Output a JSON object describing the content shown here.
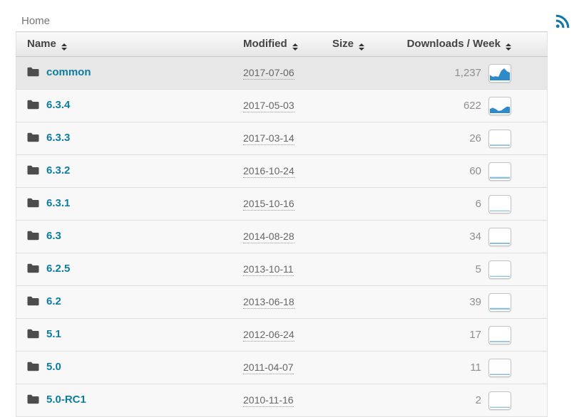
{
  "breadcrumb": {
    "home_label": "Home"
  },
  "icons": {
    "rss": "rss-feed-icon",
    "folder": "folder-icon",
    "sort": "sort-toggle-icon",
    "sparkline": "download-stats-sparkline-icon"
  },
  "colors": {
    "link": "#0e7ca0",
    "rss": "#1178a5",
    "spark_fill": "#2e8ac9",
    "spark_flat": "#8bbfde",
    "header_text": "#444444",
    "first_row_bg": "#e7e7e7"
  },
  "table": {
    "columns": [
      {
        "label": "Name",
        "sortable": true
      },
      {
        "label": "Modified",
        "sortable": true
      },
      {
        "label": "Size",
        "sortable": true
      },
      {
        "label": "Downloads / Week",
        "sortable": true
      }
    ],
    "rows": [
      {
        "name": "common",
        "type": "folder",
        "modified": "2017-07-06",
        "size": "",
        "downloads": "1,237",
        "spark_style": "filled",
        "spark": [
          4.5,
          3,
          3.5,
          3,
          8,
          10,
          7.5,
          6.5
        ]
      },
      {
        "name": "6.3.4",
        "type": "folder",
        "modified": "2017-05-03",
        "size": "",
        "downloads": "622",
        "spark_style": "filled",
        "spark": [
          3.5,
          4.5,
          3.5,
          1.8,
          2.2,
          4,
          5.5,
          5.2
        ]
      },
      {
        "name": "6.3.3",
        "type": "folder",
        "modified": "2017-03-14",
        "size": "",
        "downloads": "26",
        "spark_style": "flat",
        "spark": [
          1,
          1,
          1,
          1,
          1,
          1,
          1,
          1
        ]
      },
      {
        "name": "6.3.2",
        "type": "folder",
        "modified": "2016-10-24",
        "size": "",
        "downloads": "60",
        "spark_style": "flat",
        "spark": [
          1.4,
          1.4,
          1.4,
          1.4,
          1.4,
          1.4,
          1.4,
          1.4
        ]
      },
      {
        "name": "6.3.1",
        "type": "folder",
        "modified": "2015-10-16",
        "size": "",
        "downloads": "6",
        "spark_style": "flat",
        "spark": [
          0.7,
          0.7,
          0.7,
          0.7,
          0.7,
          0.7,
          0.7,
          0.7
        ]
      },
      {
        "name": "6.3",
        "type": "folder",
        "modified": "2014-08-28",
        "size": "",
        "downloads": "34",
        "spark_style": "flat",
        "spark": [
          1.2,
          1.2,
          1.2,
          1.2,
          1.2,
          1.2,
          1.2,
          1.2
        ]
      },
      {
        "name": "6.2.5",
        "type": "folder",
        "modified": "2013-10-11",
        "size": "",
        "downloads": "5",
        "spark_style": "flat",
        "spark": [
          0.7,
          0.7,
          0.7,
          0.7,
          0.7,
          0.7,
          0.7,
          0.7
        ]
      },
      {
        "name": "6.2",
        "type": "folder",
        "modified": "2013-06-18",
        "size": "",
        "downloads": "39",
        "spark_style": "flat",
        "spark": [
          1.3,
          1.3,
          1.3,
          1.3,
          1.3,
          1.3,
          1.3,
          1.3
        ]
      },
      {
        "name": "5.1",
        "type": "folder",
        "modified": "2012-06-24",
        "size": "",
        "downloads": "17",
        "spark_style": "flat",
        "spark": [
          1,
          1,
          1,
          1,
          1,
          1,
          1,
          1
        ]
      },
      {
        "name": "5.0",
        "type": "folder",
        "modified": "2011-04-07",
        "size": "",
        "downloads": "11",
        "spark_style": "flat",
        "spark": [
          0.9,
          0.9,
          0.9,
          0.9,
          0.9,
          0.9,
          0.9,
          0.9
        ]
      },
      {
        "name": "5.0-RC1",
        "type": "folder",
        "modified": "2010-11-16",
        "size": "",
        "downloads": "2",
        "spark_style": "flat",
        "spark": [
          0.7,
          0.7,
          0.7,
          0.7,
          0.7,
          0.7,
          0.7,
          0.7
        ]
      }
    ]
  }
}
